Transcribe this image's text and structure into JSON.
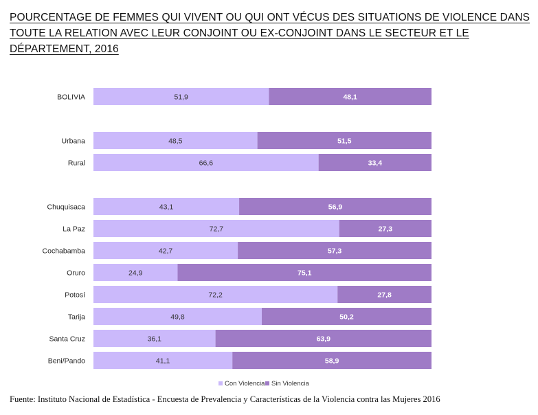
{
  "title_lines": [
    "POURCENTAGE DE FEMMES QUI VIVENT OU QUI ONT VÉCUS DES SITUATIONS DE VIOLENCE DANS",
    "TOUTE LA RELATION AVEC LEUR CONJOINT  OU EX-CONJOINT  DANS LE SECTEUR ET LE",
    "DÉPARTEMENT, 2016"
  ],
  "source": "Fuente: Instituto Nacional de Estadística - Encuesta de Prevalencia y Características de la Violencia contra las Mujeres 2016",
  "chart_data": {
    "type": "bar",
    "orientation": "horizontal",
    "stacked": "percent",
    "title": "POURCENTAGE DE FEMMES QUI VIVENT OU QUI ONT VÉCUS DES SITUATIONS DE VIOLENCE DANS TOUTE LA RELATION AVEC LEUR CONJOINT  OU EX-CONJOINT  DANS LE SECTEUR ET LE DÉPARTEMENT, 2016",
    "xlim": [
      0,
      100
    ],
    "grid": false,
    "legend_position": "bottom",
    "categories": [
      "BOLIVIA",
      "Urbana",
      "Rural",
      "Chuquisaca",
      "La Paz",
      "Cochabamba",
      "Oruro",
      "Potosí",
      "Tarija",
      "Santa Cruz",
      "Beni/Pando"
    ],
    "groups": [
      [
        "BOLIVIA"
      ],
      [
        "Urbana",
        "Rural"
      ],
      [
        "Chuquisaca",
        "La Paz",
        "Cochabamba",
        "Oruro",
        "Potosí",
        "Tarija",
        "Santa Cruz",
        "Beni/Pando"
      ]
    ],
    "series": [
      {
        "name": "Con Violencia",
        "color": "#cbb9fb",
        "label_color": "#333333",
        "values": [
          51.9,
          48.5,
          66.6,
          43.1,
          72.7,
          42.7,
          24.9,
          72.2,
          49.8,
          36.1,
          41.1
        ],
        "labels": [
          "51,9",
          "48,5",
          "66,6",
          "43,1",
          "72,7",
          "42,7",
          "24,9",
          "72,2",
          "49,8",
          "36,1",
          "41,1"
        ]
      },
      {
        "name": "Sin Violencia",
        "color": "#9f7bc6",
        "label_color": "#ffffff",
        "values": [
          48.1,
          51.5,
          33.4,
          56.9,
          27.3,
          57.3,
          75.1,
          27.8,
          50.2,
          63.9,
          58.9
        ],
        "labels": [
          "48,1",
          "51,5",
          "33,4",
          "56,9",
          "27,3",
          "57,3",
          "75,1",
          "27,8",
          "50,2",
          "63,9",
          "58,9"
        ]
      }
    ]
  }
}
